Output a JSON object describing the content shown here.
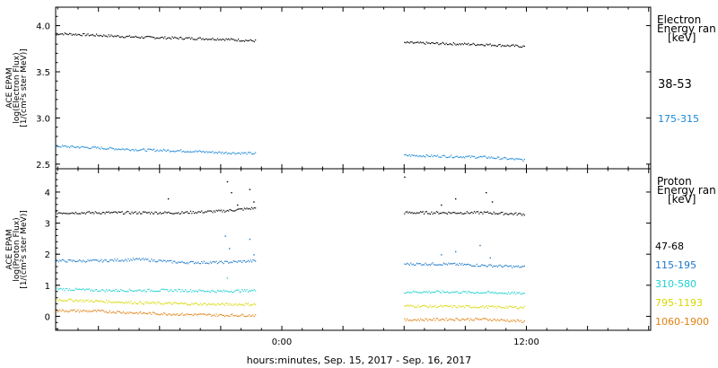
{
  "xlabel": "hours:minutes, Sep. 15, 2017 - Sep. 16, 2017",
  "x_ticks": [
    {
      "value": 0,
      "label": "0:00"
    },
    {
      "value": 12,
      "label": "12:00"
    }
  ],
  "x_range": [
    -11.1,
    18.1
  ],
  "chart_data": [
    {
      "type": "scatter",
      "ylabel_lines": [
        "ACE EPAM",
        "log(Electron Flux)",
        "[1/(cm²s ster MeV)]"
      ],
      "ylim": [
        2.45,
        4.2
      ],
      "y_ticks": [
        {
          "value": 2.5,
          "label": "2.5"
        },
        {
          "value": 3.0,
          "label": "3.0"
        },
        {
          "value": 3.5,
          "label": "3.5"
        },
        {
          "value": 4.0,
          "label": "4.0"
        }
      ],
      "legend_title": [
        "Electron",
        "Energy ran",
        "[keV]"
      ],
      "x_gap_hours": [
        -1.3,
        6.0
      ],
      "x_segments": [
        [
          -11.1,
          -1.3
        ],
        [
          6.0,
          11.9
        ]
      ],
      "series": [
        {
          "name": "38-53",
          "color": "#000000",
          "x": [
            -11.1,
            -9,
            -7,
            -5,
            -3,
            -1.3,
            6.0,
            8,
            10,
            11.9
          ],
          "values": [
            3.92,
            3.9,
            3.88,
            3.87,
            3.86,
            3.84,
            3.82,
            3.81,
            3.8,
            3.78
          ],
          "spikes": []
        },
        {
          "name": "175-315",
          "color": "#1a88d8",
          "x": [
            -11.1,
            -9,
            -7,
            -5,
            -3,
            -1.3,
            6.0,
            8,
            10,
            11.9
          ],
          "values": [
            2.7,
            2.68,
            2.66,
            2.65,
            2.63,
            2.62,
            2.6,
            2.59,
            2.58,
            2.55
          ],
          "spikes": []
        }
      ]
    },
    {
      "type": "scatter",
      "ylabel_lines": [
        "ACE EPAM",
        "log(Proton Flux)",
        "[1/(cm²s ster MeV)]"
      ],
      "ylim": [
        -0.45,
        4.75
      ],
      "y_ticks": [
        {
          "value": 0,
          "label": "0"
        },
        {
          "value": 1,
          "label": "1"
        },
        {
          "value": 2,
          "label": "2"
        },
        {
          "value": 3,
          "label": "3"
        },
        {
          "value": 4,
          "label": "4"
        }
      ],
      "legend_title": [
        "Proton",
        "Energy ran",
        "[keV]"
      ],
      "x_gap_hours": [
        -1.3,
        6.0
      ],
      "x_segments": [
        [
          -11.1,
          -1.3
        ],
        [
          6.0,
          11.9
        ]
      ],
      "series": [
        {
          "name": "47-68",
          "color": "#000000",
          "x": [
            -11.1,
            -9,
            -7,
            -5,
            -3,
            -1.3,
            6.0,
            8,
            10,
            11.9
          ],
          "values": [
            3.35,
            3.35,
            3.35,
            3.35,
            3.4,
            3.5,
            3.35,
            3.35,
            3.35,
            3.3
          ],
          "spikes": [
            [
              -5.6,
              3.8
            ],
            [
              -2.7,
              4.35
            ],
            [
              -2.5,
              4.0
            ],
            [
              -2.2,
              3.6
            ],
            [
              -1.6,
              4.1
            ],
            [
              -1.4,
              3.7
            ],
            [
              6.0,
              4.5
            ],
            [
              7.8,
              3.6
            ],
            [
              8.5,
              3.8
            ],
            [
              10.0,
              4.0
            ],
            [
              10.3,
              3.7
            ]
          ]
        },
        {
          "name": "115-195",
          "color": "#1a78c8",
          "x": [
            -11.1,
            -9,
            -7,
            -5,
            -3,
            -1.3,
            6.0,
            8,
            10,
            11.9
          ],
          "values": [
            1.8,
            1.8,
            1.85,
            1.75,
            1.75,
            1.8,
            1.7,
            1.7,
            1.65,
            1.6
          ],
          "spikes": [
            [
              -2.8,
              2.6
            ],
            [
              -2.6,
              2.2
            ],
            [
              -1.6,
              2.5
            ],
            [
              -1.4,
              2.0
            ],
            [
              7.8,
              2.0
            ],
            [
              8.5,
              2.1
            ],
            [
              9.7,
              2.3
            ],
            [
              10.2,
              1.9
            ]
          ]
        },
        {
          "name": "310-580",
          "color": "#20d0d0",
          "x": [
            -11.1,
            -9,
            -7,
            -5,
            -3,
            -1.3,
            6.0,
            8,
            10,
            11.9
          ],
          "values": [
            0.9,
            0.85,
            0.85,
            0.85,
            0.82,
            0.85,
            0.8,
            0.8,
            0.78,
            0.75
          ],
          "spikes": [
            [
              -2.7,
              1.25
            ]
          ]
        },
        {
          "name": "795-1193",
          "color": "#d8d800",
          "x": [
            -11.1,
            -9,
            -7,
            -5,
            -3,
            -1.3,
            6.0,
            8,
            10,
            11.9
          ],
          "values": [
            0.55,
            0.5,
            0.45,
            0.42,
            0.4,
            0.4,
            0.35,
            0.33,
            0.32,
            0.3
          ],
          "spikes": []
        },
        {
          "name": "1060-1900",
          "color": "#e08010",
          "x": [
            -11.1,
            -9,
            -7,
            -5,
            -3,
            -1.3,
            6.0,
            8,
            10,
            11.9
          ],
          "values": [
            0.2,
            0.18,
            0.12,
            0.08,
            0.05,
            0.05,
            -0.1,
            -0.08,
            -0.08,
            -0.15
          ],
          "spikes": []
        }
      ]
    }
  ]
}
